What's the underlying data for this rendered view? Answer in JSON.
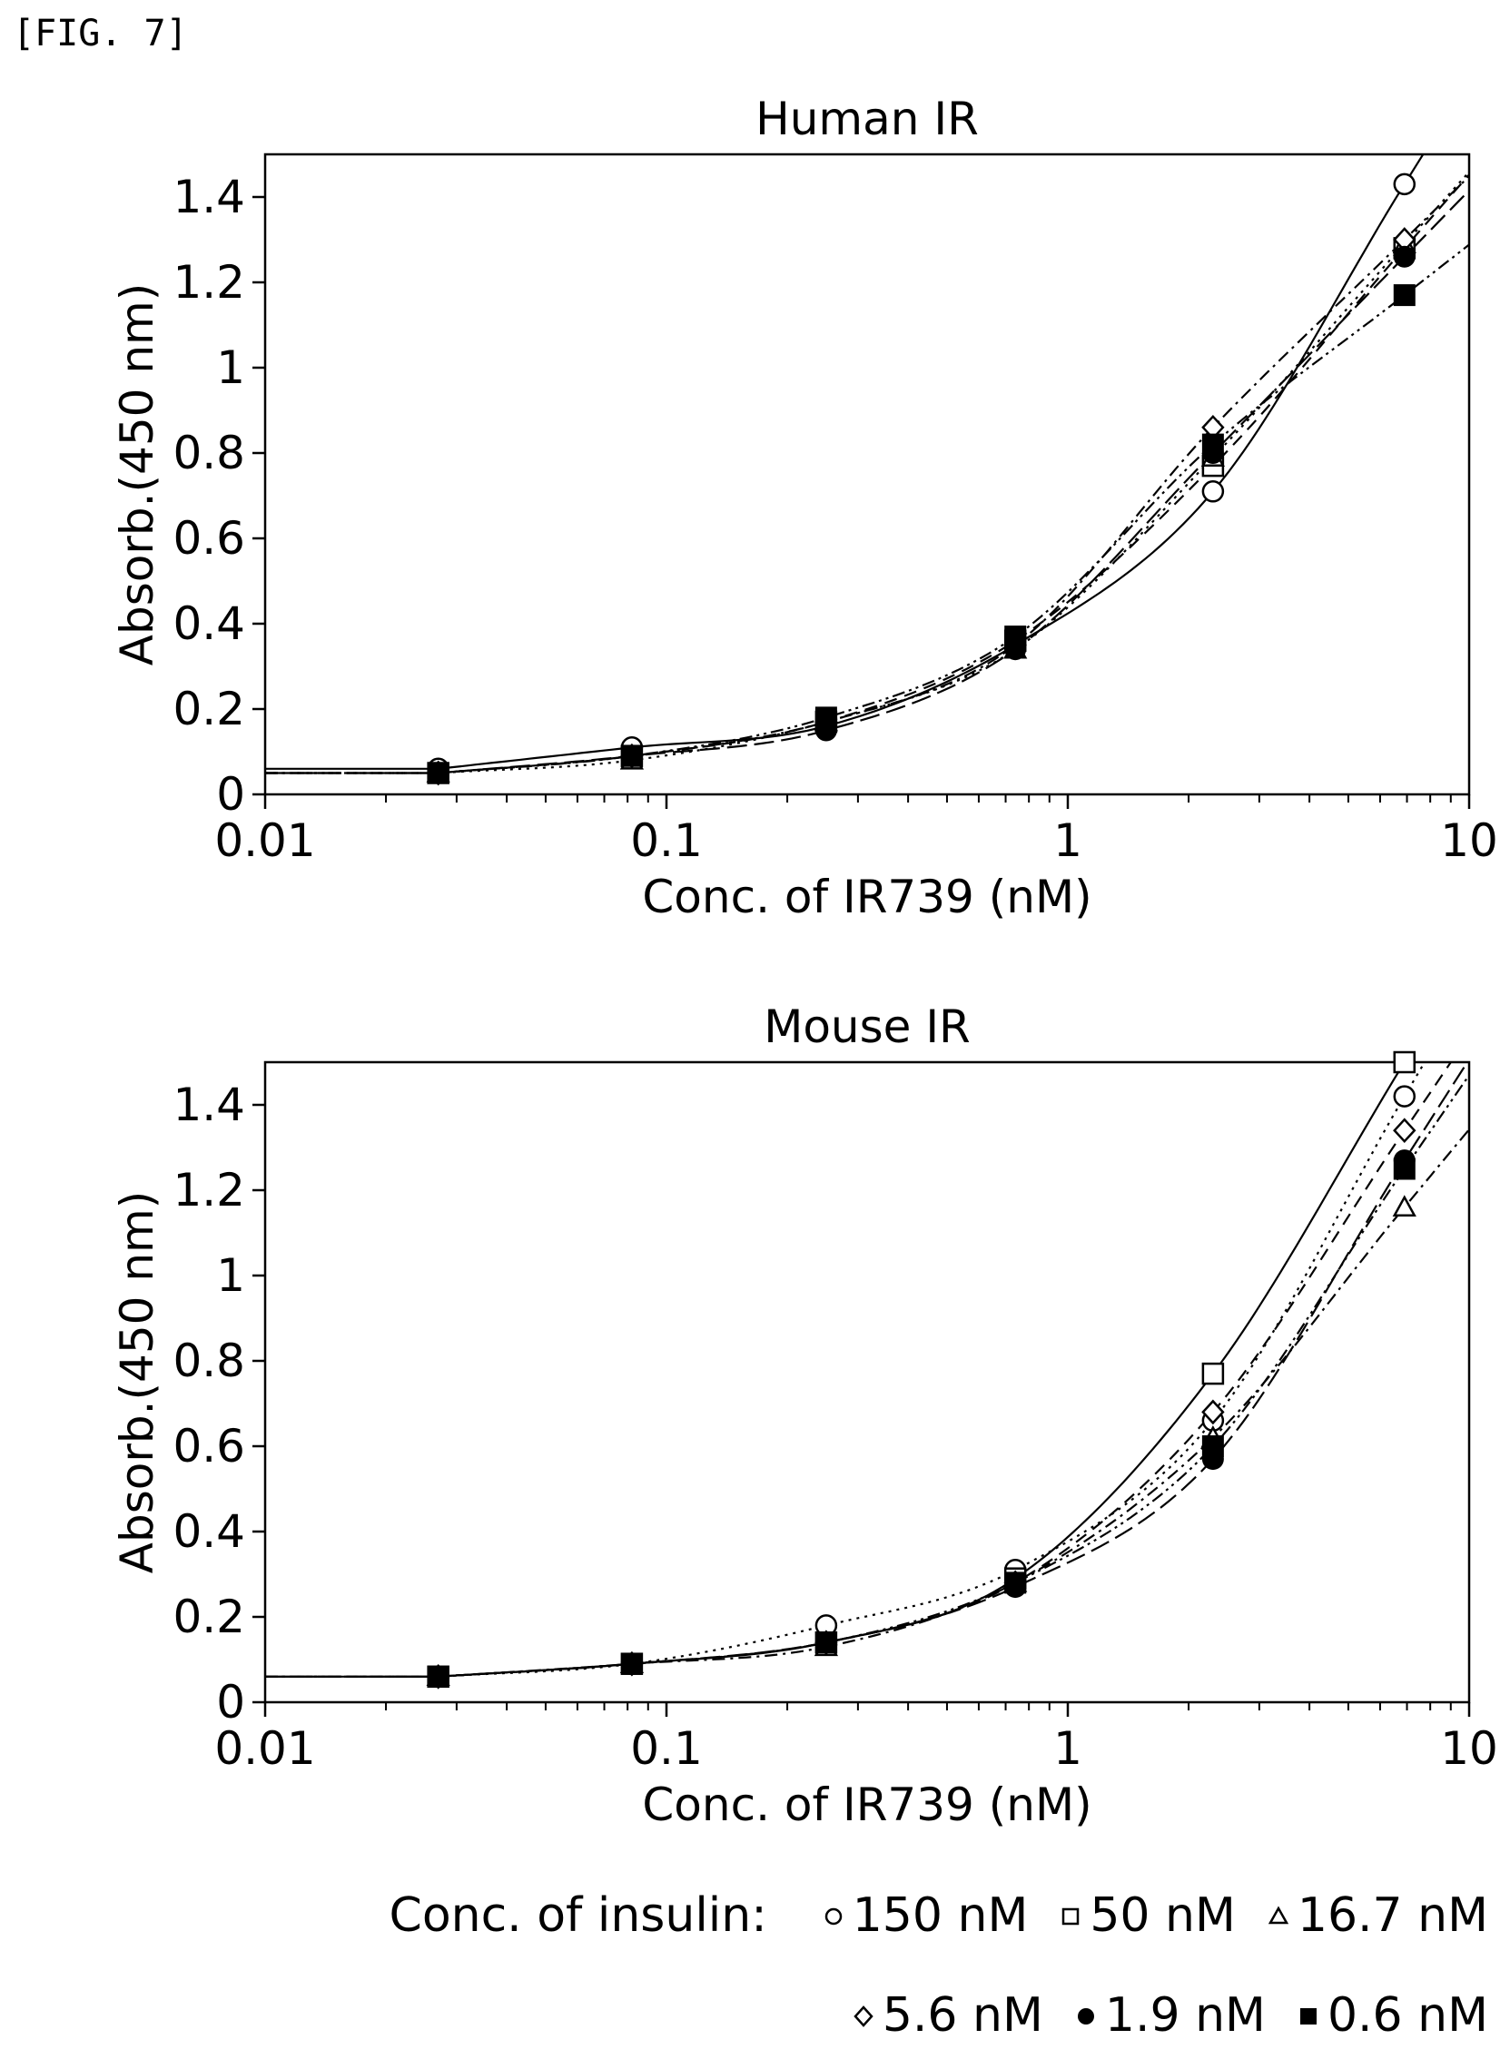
{
  "figure_label": "[FIG. 7]",
  "legend": {
    "title": "Conc. of insulin:",
    "entries": [
      {
        "label": "150 nM",
        "marker": "open-circle"
      },
      {
        "label": "50 nM",
        "marker": "open-square"
      },
      {
        "label": "16.7 nM",
        "marker": "open-triangle"
      },
      {
        "label": "5.6 nM",
        "marker": "open-diamond"
      },
      {
        "label": "1.9 nM",
        "marker": "filled-circle"
      },
      {
        "label": "0.6 nM",
        "marker": "filled-square"
      }
    ]
  },
  "chart_data": [
    {
      "type": "scatter",
      "title": "Human IR",
      "xlabel": "Conc. of IR739 (nM)",
      "ylabel": "Absorb.(450 nm)",
      "xscale": "log",
      "xlim": [
        0.01,
        10
      ],
      "ylim": [
        0,
        1.5
      ],
      "xticks": [
        0.01,
        0.1,
        1,
        10
      ],
      "xtick_labels": [
        "0.01",
        "0.1",
        "1",
        "10"
      ],
      "yticks": [
        0,
        0.2,
        0.4,
        0.6,
        0.8,
        1,
        1.2,
        1.4
      ],
      "ytick_labels": [
        "0",
        "0.2",
        "0.4",
        "0.6",
        "0.8",
        "1",
        "1.2",
        "1.4"
      ],
      "grid": false,
      "fit_curves": true,
      "x": [
        0.027,
        0.082,
        0.25,
        0.74,
        2.3,
        6.9
      ],
      "series": [
        {
          "name": "150 nM",
          "marker": "open-circle",
          "line": "solid",
          "values": [
            0.06,
            0.11,
            0.16,
            0.35,
            0.71,
            1.43
          ]
        },
        {
          "name": "50 nM",
          "marker": "open-square",
          "line": "dashed",
          "values": [
            0.05,
            0.09,
            0.17,
            0.36,
            0.77,
            1.28
          ]
        },
        {
          "name": "16.7 nM",
          "marker": "open-triangle",
          "line": "dotted",
          "values": [
            0.05,
            0.08,
            0.17,
            0.34,
            0.79,
            1.29
          ]
        },
        {
          "name": "5.6 nM",
          "marker": "open-diamond",
          "line": "dash-dot",
          "values": [
            0.05,
            0.09,
            0.17,
            0.35,
            0.86,
            1.3
          ]
        },
        {
          "name": "1.9 nM",
          "marker": "filled-circle",
          "line": "long-dash",
          "values": [
            0.05,
            0.09,
            0.15,
            0.34,
            0.8,
            1.26
          ]
        },
        {
          "name": "0.6 nM",
          "marker": "filled-square",
          "line": "dash-dot-dot",
          "values": [
            0.05,
            0.09,
            0.18,
            0.37,
            0.82,
            1.17
          ]
        }
      ]
    },
    {
      "type": "scatter",
      "title": "Mouse IR",
      "xlabel": "Conc. of IR739 (nM)",
      "ylabel": "Absorb.(450 nm)",
      "xscale": "log",
      "xlim": [
        0.01,
        10
      ],
      "ylim": [
        0,
        1.5
      ],
      "xticks": [
        0.01,
        0.1,
        1,
        10
      ],
      "xtick_labels": [
        "0.01",
        "0.1",
        "1",
        "10"
      ],
      "yticks": [
        0,
        0.2,
        0.4,
        0.6,
        0.8,
        1,
        1.2,
        1.4
      ],
      "ytick_labels": [
        "0",
        "0.2",
        "0.4",
        "0.6",
        "0.8",
        "1",
        "1.2",
        "1.4"
      ],
      "grid": false,
      "fit_curves": true,
      "x": [
        0.027,
        0.082,
        0.25,
        0.74,
        2.3,
        6.9
      ],
      "series": [
        {
          "name": "150 nM",
          "marker": "open-circle",
          "line": "dotted",
          "values": [
            0.06,
            0.09,
            0.18,
            0.31,
            0.66,
            1.42
          ]
        },
        {
          "name": "50 nM",
          "marker": "open-square",
          "line": "solid",
          "values": [
            0.06,
            0.09,
            0.14,
            0.29,
            0.77,
            1.5
          ]
        },
        {
          "name": "16.7 nM",
          "marker": "open-triangle",
          "line": "dash-dot",
          "values": [
            0.06,
            0.09,
            0.13,
            0.28,
            0.62,
            1.16
          ]
        },
        {
          "name": "5.6 nM",
          "marker": "open-diamond",
          "line": "dashed",
          "values": [
            0.06,
            0.09,
            0.14,
            0.28,
            0.68,
            1.34
          ]
        },
        {
          "name": "1.9 nM",
          "marker": "filled-circle",
          "line": "long-dash",
          "values": [
            0.06,
            0.09,
            0.14,
            0.27,
            0.57,
            1.27
          ]
        },
        {
          "name": "0.6 nM",
          "marker": "filled-square",
          "line": "dash-dot-dot",
          "values": [
            0.06,
            0.09,
            0.14,
            0.28,
            0.6,
            1.25
          ]
        }
      ]
    }
  ]
}
